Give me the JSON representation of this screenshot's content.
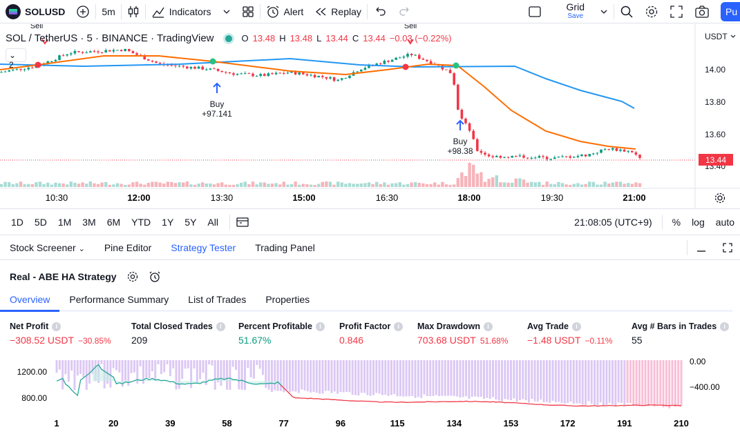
{
  "header": {
    "symbol": "SOLUSD",
    "interval": "5m",
    "indicators_label": "Indicators",
    "alert_label": "Alert",
    "replay_label": "Replay",
    "layout_name": "Grid",
    "layout_save": "Save",
    "publish_label": "Pu"
  },
  "legend": {
    "title": "SOL / TetherUS · 5 · BINANCE · TradingView",
    "o_label": "O",
    "o_value": "13.48",
    "h_label": "H",
    "h_value": "13.48",
    "l_label": "L",
    "l_value": "13.44",
    "c_label": "C",
    "c_value": "13.44",
    "change": "−0.03 (−0.22%)",
    "indicator_count": "2"
  },
  "price_axis": {
    "currency": "USDT",
    "ticks": [
      "14.00",
      "13.80",
      "13.60",
      "13.40"
    ],
    "last_price": "13.44"
  },
  "time_axis": {
    "ticks": [
      "10:30",
      "12:00",
      "13:30",
      "15:00",
      "16:30",
      "18:00",
      "19:30",
      "21:00"
    ]
  },
  "signals": [
    {
      "label": "Sell"
    },
    {
      "label": "Buy",
      "value": "+97.141"
    },
    {
      "label": "Sell"
    },
    {
      "label": "Buy",
      "value": "+98.38"
    }
  ],
  "timeframes": [
    "1D",
    "5D",
    "1M",
    "3M",
    "6M",
    "YTD",
    "1Y",
    "5Y",
    "All"
  ],
  "clock": "21:08:05 (UTC+9)",
  "scale_options": {
    "percent": "%",
    "log": "log",
    "auto": "auto"
  },
  "panel_tabs": [
    {
      "label": "Stock Screener"
    },
    {
      "label": "Pine Editor"
    },
    {
      "label": "Strategy Tester"
    },
    {
      "label": "Trading Panel"
    }
  ],
  "strategy": {
    "name": "Real - ABE HA Strategy",
    "subtabs": [
      "Overview",
      "Performance Summary",
      "List of Trades",
      "Properties"
    ]
  },
  "metrics": {
    "net_profit": {
      "title": "Net Profit",
      "value": "−308.52 USDT",
      "pct": "−30.85%"
    },
    "total_closed": {
      "title": "Total Closed Trades",
      "value": "209"
    },
    "pct_profitable": {
      "title": "Percent Profitable",
      "value": "51.67%"
    },
    "profit_factor": {
      "title": "Profit Factor",
      "value": "0.846"
    },
    "max_drawdown": {
      "title": "Max Drawdown",
      "value": "703.68 USDT",
      "pct": "51.68%"
    },
    "avg_trade": {
      "title": "Avg Trade",
      "value": "−1.48 USDT",
      "pct": "−0.11%"
    },
    "avg_bars": {
      "title": "Avg # Bars in Trades",
      "value": "55"
    }
  },
  "equity_chart": {
    "left_ticks": [
      "1200.00",
      "800.00"
    ],
    "right_ticks": [
      "0.00",
      "−400.00"
    ],
    "x_ticks": [
      "1",
      "20",
      "39",
      "58",
      "77",
      "96",
      "115",
      "134",
      "153",
      "172",
      "191",
      "210"
    ]
  },
  "colors": {
    "accent": "#2962ff",
    "down": "#f23645",
    "up": "#089981",
    "ema_orange": "#ff6d00",
    "ma_blue": "#2196f3"
  }
}
